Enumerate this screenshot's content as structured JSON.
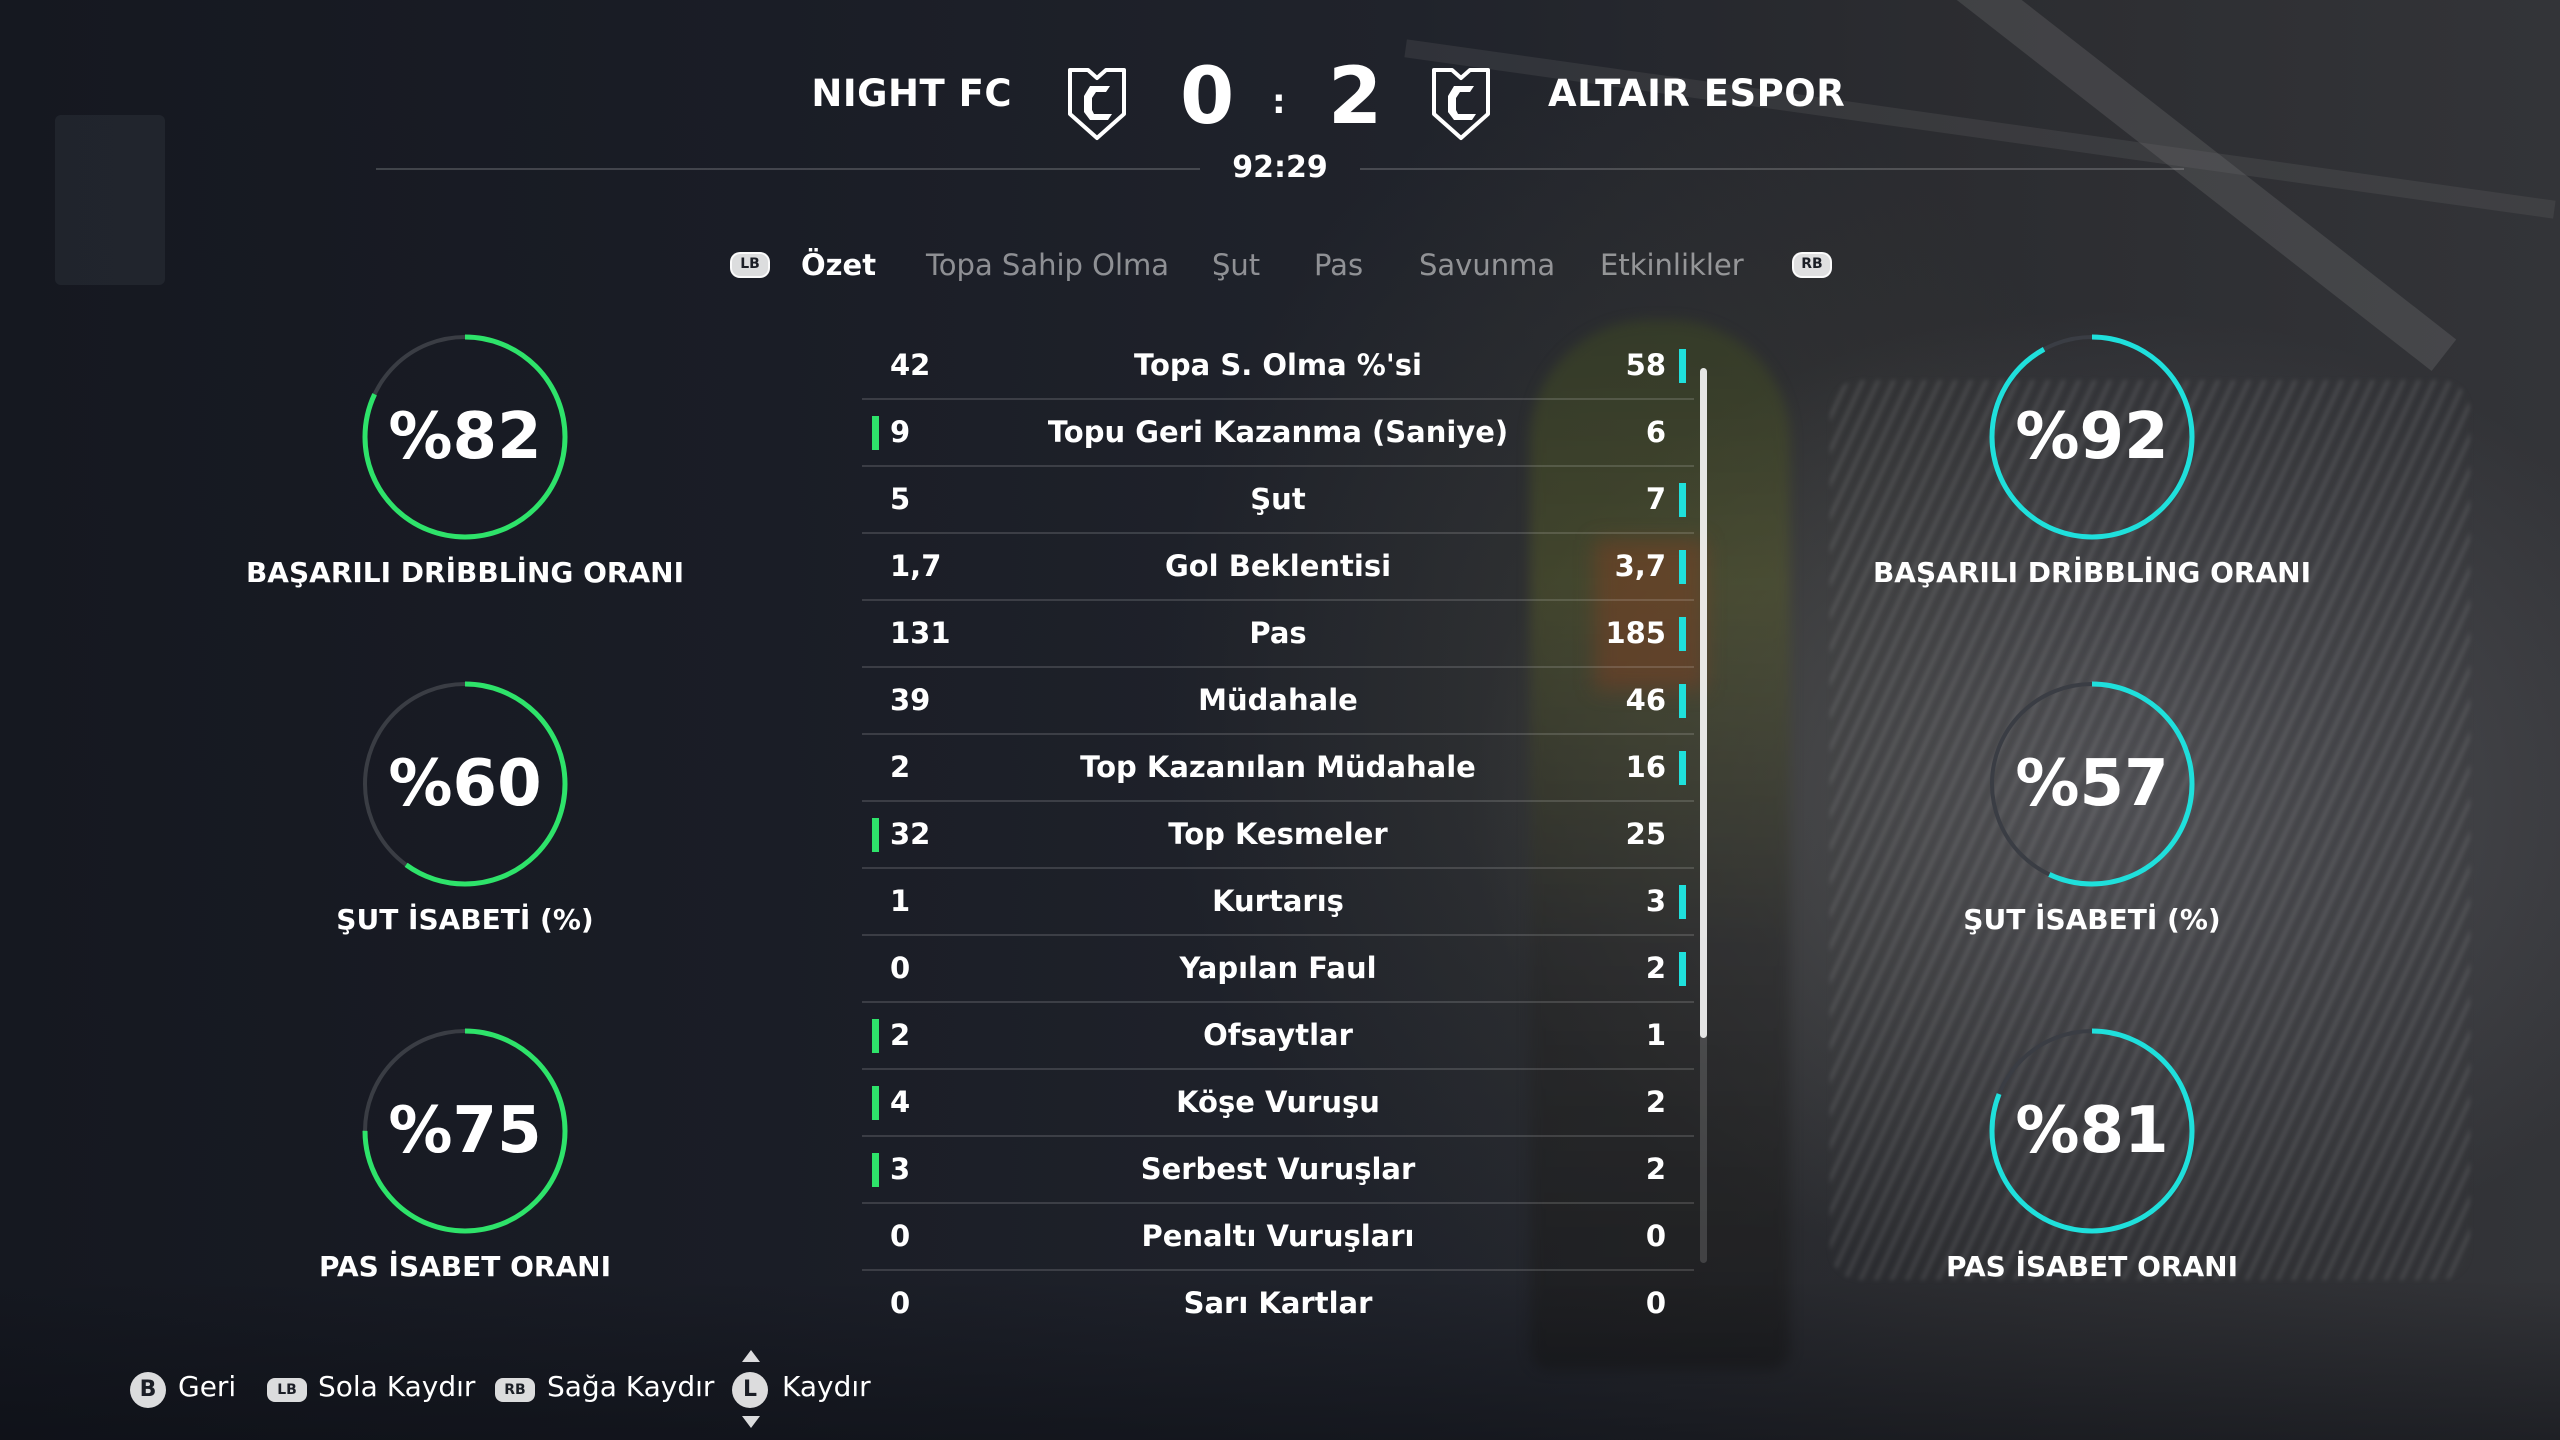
{
  "match": {
    "home_team": "NIGHT FC",
    "away_team": "ALTAIR ESPOR",
    "home_score": "0",
    "away_score": "2",
    "separator": ":",
    "clock": "92:29"
  },
  "tabs": {
    "lb_button": "LB",
    "rb_button": "RB",
    "items": [
      {
        "label": "Özet",
        "active": true
      },
      {
        "label": "Topa Sahip Olma",
        "active": false
      },
      {
        "label": "Şut",
        "active": false
      },
      {
        "label": "Pas",
        "active": false
      },
      {
        "label": "Savunma",
        "active": false
      },
      {
        "label": "Etkinlikler",
        "active": false
      }
    ]
  },
  "home_rings": [
    {
      "value": "%82",
      "percent": 82,
      "label": "BAŞARILI DRİBBLİNG ORANI"
    },
    {
      "value": "%60",
      "percent": 60,
      "label": "ŞUT İSABETİ (%)"
    },
    {
      "value": "%75",
      "percent": 75,
      "label": "PAS İSABET ORANI"
    }
  ],
  "away_rings": [
    {
      "value": "%92",
      "percent": 92,
      "label": "BAŞARILI DRİBBLİNG ORANI"
    },
    {
      "value": "%57",
      "percent": 57,
      "label": "ŞUT İSABETİ (%)"
    },
    {
      "value": "%81",
      "percent": 81,
      "label": "PAS İSABET ORANI"
    }
  ],
  "stats": [
    {
      "home": "42",
      "name": "Topa S. Olma %'si",
      "away": "58",
      "lead": "away"
    },
    {
      "home": "9",
      "name": "Topu Geri Kazanma (Saniye)",
      "away": "6",
      "lead": "home"
    },
    {
      "home": "5",
      "name": "Şut",
      "away": "7",
      "lead": "away"
    },
    {
      "home": "1,7",
      "name": "Gol Beklentisi",
      "away": "3,7",
      "lead": "away"
    },
    {
      "home": "131",
      "name": "Pas",
      "away": "185",
      "lead": "away"
    },
    {
      "home": "39",
      "name": "Müdahale",
      "away": "46",
      "lead": "away"
    },
    {
      "home": "2",
      "name": "Top Kazanılan Müdahale",
      "away": "16",
      "lead": "away"
    },
    {
      "home": "32",
      "name": "Top Kesmeler",
      "away": "25",
      "lead": "home"
    },
    {
      "home": "1",
      "name": "Kurtarış",
      "away": "3",
      "lead": "away"
    },
    {
      "home": "0",
      "name": "Yapılan Faul",
      "away": "2",
      "lead": "away"
    },
    {
      "home": "2",
      "name": "Ofsaytlar",
      "away": "1",
      "lead": "home"
    },
    {
      "home": "4",
      "name": "Köşe Vuruşu",
      "away": "2",
      "lead": "home"
    },
    {
      "home": "3",
      "name": "Serbest Vuruşlar",
      "away": "2",
      "lead": "home"
    },
    {
      "home": "0",
      "name": "Penaltı Vuruşları",
      "away": "0",
      "lead": "none"
    },
    {
      "home": "0",
      "name": "Sarı Kartlar",
      "away": "0",
      "lead": "none"
    }
  ],
  "footer": {
    "back_key": "B",
    "back_label": "Geri",
    "left_key": "LB",
    "left_label": "Sola Kaydır",
    "right_key": "RB",
    "right_label": "Sağa Kaydır",
    "scroll_key": "L",
    "scroll_label": "Kaydır"
  },
  "colors": {
    "home_accent": "#2ee36a",
    "away_accent": "#1fe0dc",
    "ring_track": "#3a3d44"
  },
  "icons": {
    "crest": "team-crest-icon"
  }
}
